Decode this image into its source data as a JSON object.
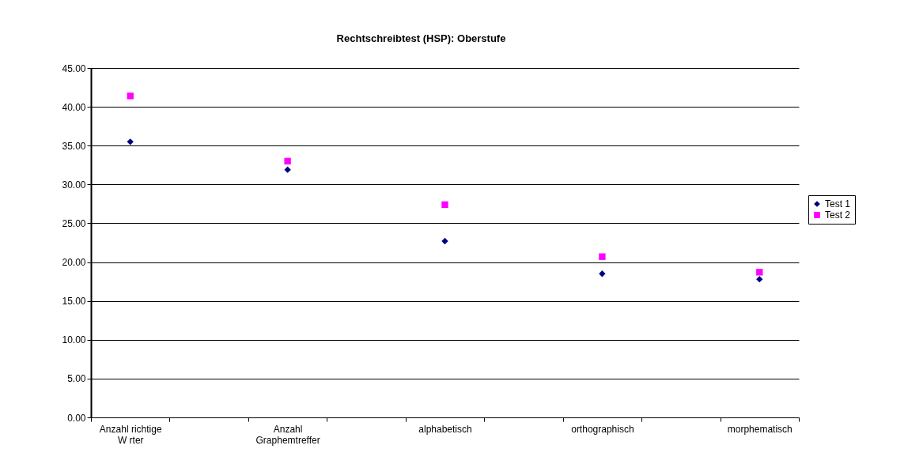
{
  "chart_data": {
    "type": "scatter",
    "title": "Rechtschreibtest (HSP): Oberstufe",
    "categories": [
      "Anzahl richtige\nW rter",
      null,
      "Anzahl\nGraphemtreffer",
      null,
      "alphabetisch",
      null,
      "orthographisch",
      null,
      "morphematisch"
    ],
    "series": [
      {
        "name": "Test 1",
        "color": "#000080",
        "marker": "diamond",
        "values": [
          35.5,
          null,
          31.9,
          null,
          22.7,
          null,
          18.5,
          null,
          17.8
        ]
      },
      {
        "name": "Test 2",
        "color": "#ff00ff",
        "marker": "square",
        "values": [
          41.4,
          null,
          33.0,
          null,
          27.4,
          null,
          20.7,
          null,
          18.7
        ]
      }
    ],
    "ylim": [
      0,
      45
    ],
    "yticks": [
      {
        "value": 0,
        "label": "0.00"
      },
      {
        "value": 5,
        "label": "5.00"
      },
      {
        "value": 10,
        "label": "10.00"
      },
      {
        "value": 15,
        "label": "15.00"
      },
      {
        "value": 20,
        "label": "20.00"
      },
      {
        "value": 25,
        "label": "25.00"
      },
      {
        "value": 30,
        "label": "30.00"
      },
      {
        "value": 35,
        "label": "35.00"
      },
      {
        "value": 40,
        "label": "40.00"
      },
      {
        "value": 45,
        "label": "45.00"
      }
    ],
    "grid": "y",
    "legend": "right"
  }
}
